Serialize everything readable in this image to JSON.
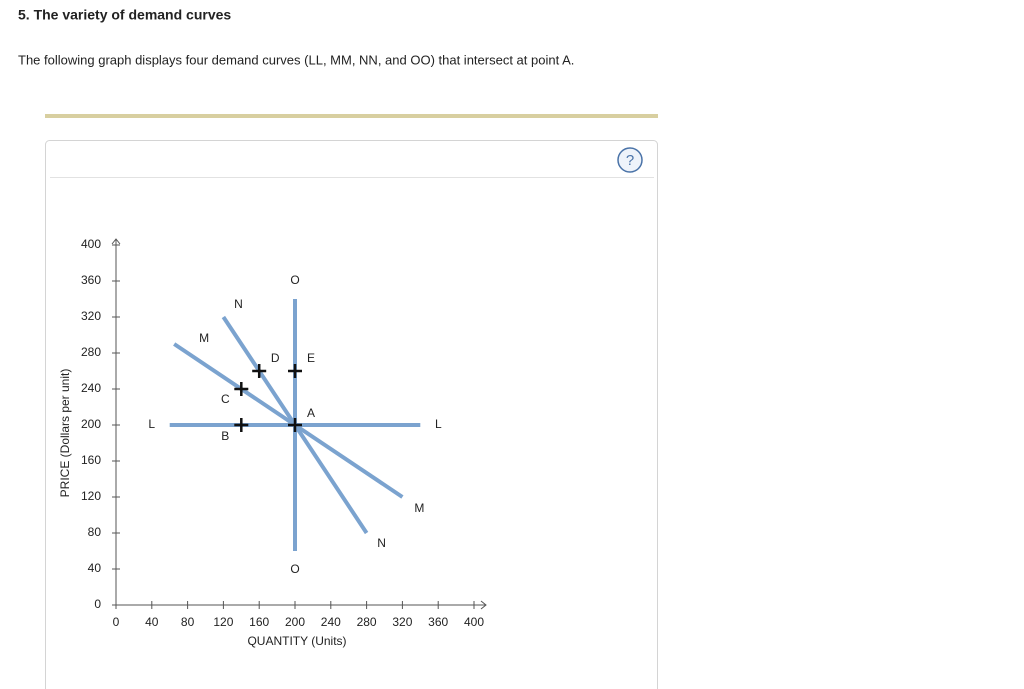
{
  "header": {
    "title": "5. The variety of demand curves",
    "description": "The following graph displays four demand curves (LL, MM, NN, and OO) that intersect at point A."
  },
  "help_icon": "?",
  "chart_data": {
    "type": "line",
    "xlabel": "QUANTITY (Units)",
    "ylabel": "PRICE (Dollars per unit)",
    "xlim": [
      0,
      400
    ],
    "ylim": [
      0,
      400
    ],
    "xticks": [
      0,
      40,
      80,
      120,
      160,
      200,
      240,
      280,
      320,
      360,
      400
    ],
    "yticks": [
      0,
      40,
      80,
      120,
      160,
      200,
      240,
      280,
      320,
      360,
      400
    ],
    "series": [
      {
        "label": "L",
        "color": "#7ba3cf",
        "x": [
          60,
          340
        ],
        "values": [
          200,
          200
        ]
      },
      {
        "label": "M",
        "color": "#7ba3cf",
        "x": [
          65,
          320
        ],
        "values": [
          290,
          120
        ]
      },
      {
        "label": "N",
        "color": "#7ba3cf",
        "x": [
          120,
          280
        ],
        "values": [
          320,
          80
        ]
      },
      {
        "label": "O",
        "color": "#7ba3cf",
        "x": [
          200,
          200
        ],
        "values": [
          340,
          60
        ]
      }
    ],
    "points": [
      {
        "label": "A",
        "x": 200,
        "y": 200
      },
      {
        "label": "B",
        "x": 140,
        "y": 200
      },
      {
        "label": "C",
        "x": 140,
        "y": 240
      },
      {
        "label": "D",
        "x": 160,
        "y": 260
      },
      {
        "label": "E",
        "x": 200,
        "y": 260
      }
    ]
  }
}
